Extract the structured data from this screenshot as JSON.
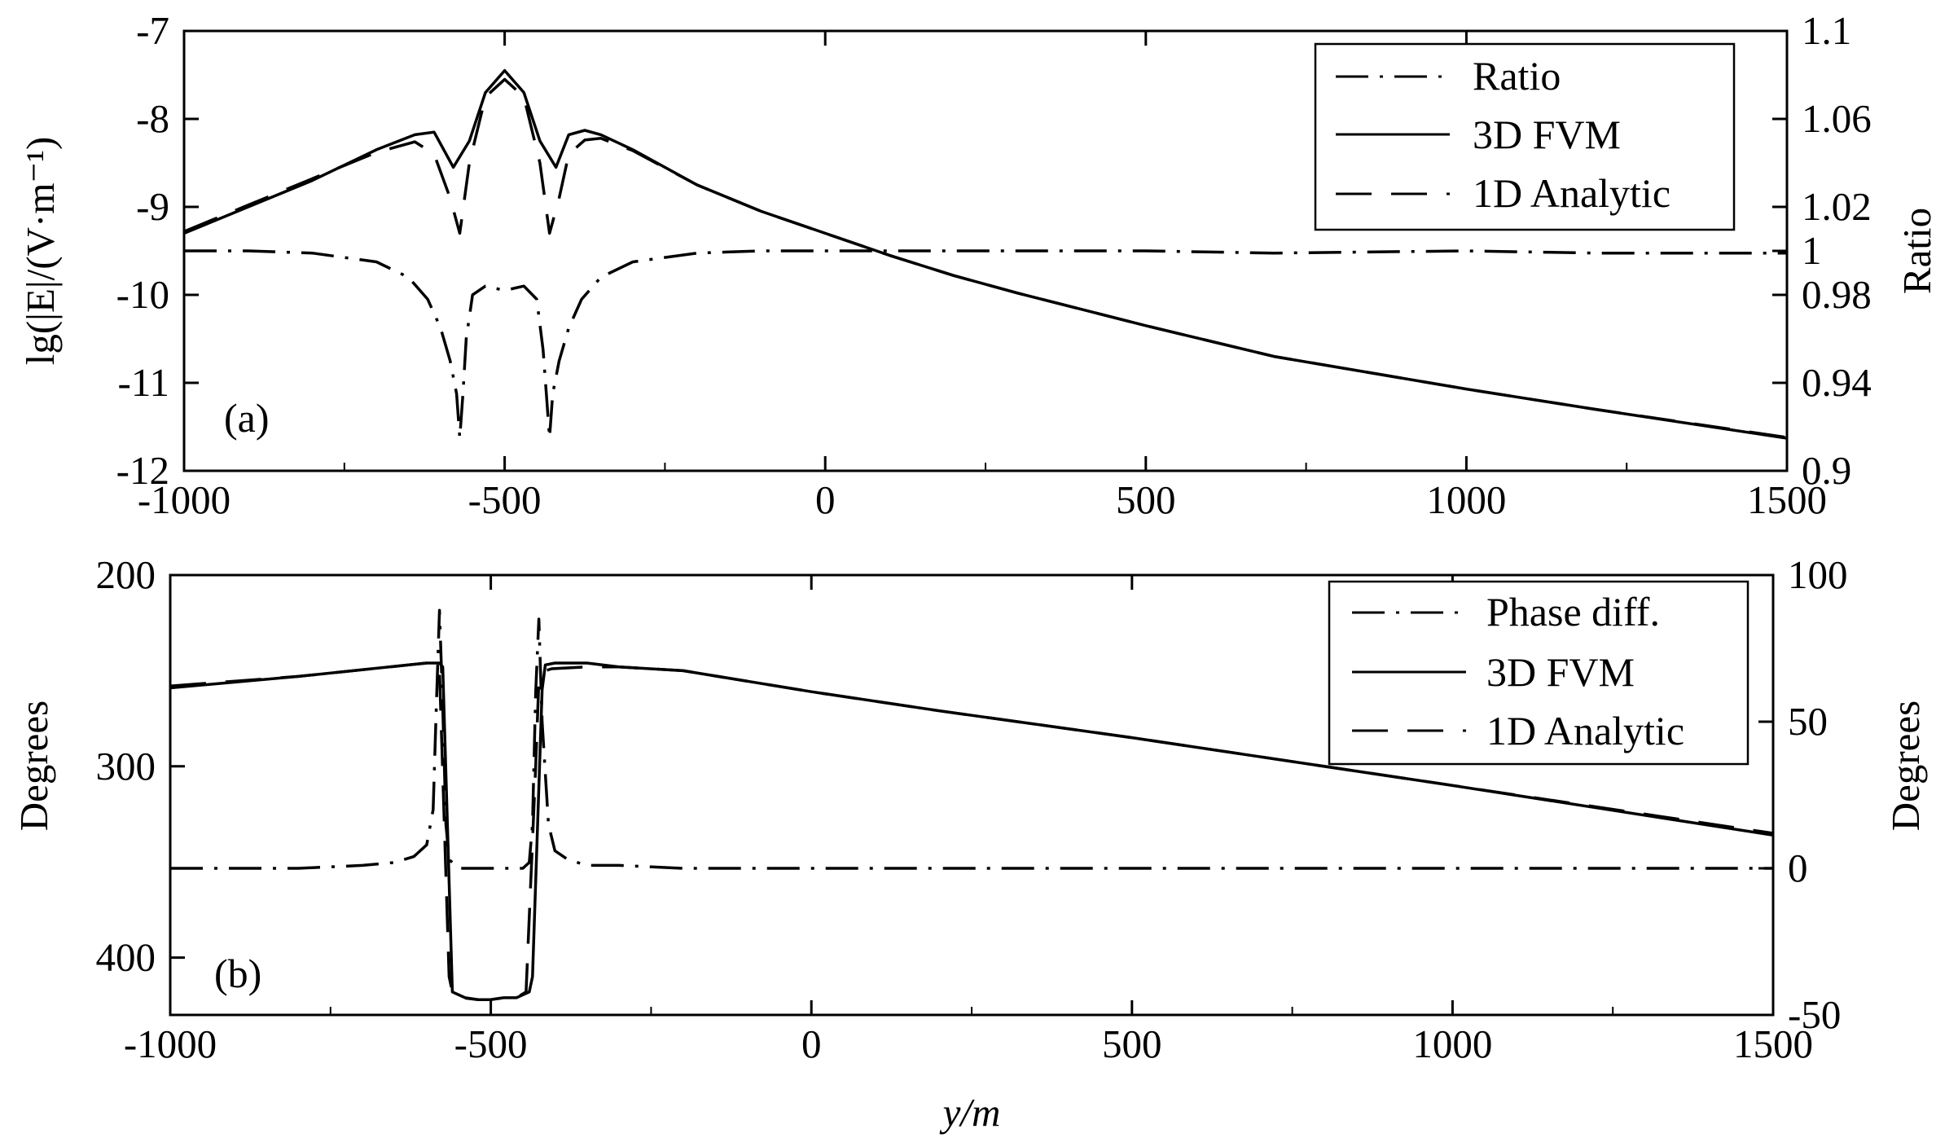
{
  "chart_data": [
    {
      "panel": "(a)",
      "type": "line",
      "xlabel": "y/m",
      "ylabel": "lg(|E|/(V·m⁻¹)",
      "ylabel_right": "Ratio",
      "xlim": [
        -1000,
        1500
      ],
      "ylim": [
        -12,
        -7
      ],
      "ylim_right": [
        0.9,
        1.1
      ],
      "x_ticks": [
        "-1000",
        "-500",
        "0",
        "500",
        "1000",
        "1500"
      ],
      "y_ticks": [
        "-7",
        "-8",
        "-9",
        "-10",
        "-11",
        "-12"
      ],
      "y_ticks_right": [
        "1.1",
        "1.06",
        "1.02",
        "1",
        "0.98",
        "0.94",
        "0.9"
      ],
      "legend": {
        "position": "top-right",
        "entries": [
          "Ratio",
          "3D FVM",
          "1D Analytic"
        ]
      },
      "series": [
        {
          "name": "3D FVM",
          "axis": "left",
          "style": "solid",
          "x": [
            -1000,
            -900,
            -800,
            -700,
            -640,
            -610,
            -580,
            -555,
            -530,
            -500,
            -470,
            -445,
            -420,
            -400,
            -375,
            -350,
            -300,
            -200,
            -100,
            0,
            100,
            200,
            300,
            500,
            700,
            1000,
            1200,
            1500
          ],
          "y": [
            -9.3,
            -9.0,
            -8.7,
            -8.35,
            -8.18,
            -8.15,
            -8.55,
            -8.25,
            -7.7,
            -7.45,
            -7.7,
            -8.25,
            -8.55,
            -8.18,
            -8.13,
            -8.18,
            -8.35,
            -8.75,
            -9.05,
            -9.3,
            -9.55,
            -9.78,
            -9.98,
            -10.35,
            -10.7,
            -11.07,
            -11.3,
            -11.63
          ]
        },
        {
          "name": "1D Analytic",
          "axis": "left",
          "style": "dashed",
          "x": [
            -1000,
            -900,
            -800,
            -700,
            -640,
            -610,
            -585,
            -570,
            -555,
            -530,
            -500,
            -470,
            -445,
            -430,
            -415,
            -400,
            -375,
            -350,
            -300,
            -200,
            -100,
            0,
            100,
            200,
            300,
            500,
            700,
            1000,
            1200,
            1500
          ],
          "y": [
            -9.28,
            -8.98,
            -8.68,
            -8.38,
            -8.26,
            -8.4,
            -8.9,
            -9.3,
            -8.5,
            -7.75,
            -7.55,
            -7.75,
            -8.5,
            -9.3,
            -8.9,
            -8.4,
            -8.24,
            -8.22,
            -8.36,
            -8.75,
            -9.05,
            -9.3,
            -9.55,
            -9.78,
            -9.98,
            -10.35,
            -10.7,
            -11.07,
            -11.3,
            -11.62
          ]
        },
        {
          "name": "Ratio",
          "axis": "right",
          "style": "dashdot",
          "x": [
            -1000,
            -900,
            -800,
            -700,
            -650,
            -620,
            -600,
            -585,
            -575,
            -570,
            -565,
            -560,
            -550,
            -530,
            -500,
            -470,
            -450,
            -440,
            -435,
            -430,
            -425,
            -415,
            -400,
            -380,
            -350,
            -300,
            -200,
            -100,
            0,
            100,
            300,
            500,
            700,
            1000,
            1200,
            1500
          ],
          "y": [
            1.0,
            1.0,
            0.999,
            0.995,
            0.988,
            0.978,
            0.965,
            0.95,
            0.935,
            0.915,
            0.935,
            0.96,
            0.98,
            0.984,
            0.982,
            0.984,
            0.978,
            0.955,
            0.935,
            0.915,
            0.935,
            0.95,
            0.965,
            0.978,
            0.988,
            0.995,
            0.999,
            1.0,
            1.0,
            1.0,
            1.0,
            1.0,
            0.999,
            1.0,
            0.999,
            0.999
          ]
        }
      ]
    },
    {
      "panel": "(b)",
      "type": "line",
      "xlabel": "y/m",
      "ylabel": "Degrees",
      "ylabel_right": "Degrees",
      "xlim": [
        -1000,
        1500
      ],
      "ylim": [
        200,
        430
      ],
      "y_inverted": true,
      "ylim_right": [
        -50,
        100
      ],
      "x_ticks": [
        "-1000",
        "-500",
        "0",
        "500",
        "1000",
        "1500"
      ],
      "y_ticks": [
        "200",
        "300",
        "400"
      ],
      "y_ticks_right": [
        "100",
        "50",
        "0",
        "-50"
      ],
      "legend": {
        "position": "top-right",
        "entries": [
          "Phase diff.",
          "3D FVM",
          "1D Analytic"
        ]
      },
      "series": [
        {
          "name": "3D FVM",
          "axis": "left",
          "style": "solid",
          "x": [
            -1000,
            -800,
            -600,
            -580,
            -575,
            -560,
            -540,
            -520,
            -500,
            -480,
            -460,
            -440,
            -435,
            -420,
            -415,
            -400,
            -350,
            -300,
            -200,
            0,
            200,
            500,
            1000,
            1500
          ],
          "y": [
            259,
            253,
            246,
            246,
            248,
            418,
            421,
            422,
            422,
            421,
            421,
            418,
            410,
            260,
            247,
            246,
            246,
            248,
            250,
            261,
            271,
            285,
            310,
            336
          ]
        },
        {
          "name": "1D Analytic",
          "axis": "left",
          "style": "dashed",
          "x": [
            -1000,
            -800,
            -600,
            -590,
            -580,
            -565,
            -560,
            -545,
            -520,
            -500,
            -480,
            -460,
            -445,
            -430,
            -425,
            -415,
            -405,
            -350,
            -300,
            -200,
            0,
            200,
            500,
            1000,
            1500
          ],
          "y": [
            258,
            253,
            246,
            247,
            250,
            410,
            418,
            421,
            422,
            422,
            421,
            421,
            418,
            300,
            255,
            250,
            249,
            248,
            248,
            250,
            261,
            271,
            285,
            310,
            335
          ]
        },
        {
          "name": "Phase diff.",
          "axis": "right",
          "style": "dashdot",
          "x": [
            -1000,
            -900,
            -800,
            -700,
            -650,
            -620,
            -600,
            -590,
            -585,
            -580,
            -575,
            -570,
            -565,
            -550,
            -500,
            -450,
            -440,
            -435,
            -430,
            -425,
            -420,
            -410,
            -400,
            -380,
            -350,
            -300,
            -200,
            0,
            200,
            500,
            1000,
            1200,
            1500
          ],
          "y": [
            0,
            0,
            0,
            1,
            2,
            4,
            8,
            20,
            55,
            88,
            55,
            15,
            3,
            0,
            0,
            0,
            2,
            15,
            60,
            85,
            50,
            15,
            6,
            3,
            1,
            1,
            0,
            0,
            0,
            0,
            0,
            0,
            0
          ]
        }
      ]
    }
  ]
}
